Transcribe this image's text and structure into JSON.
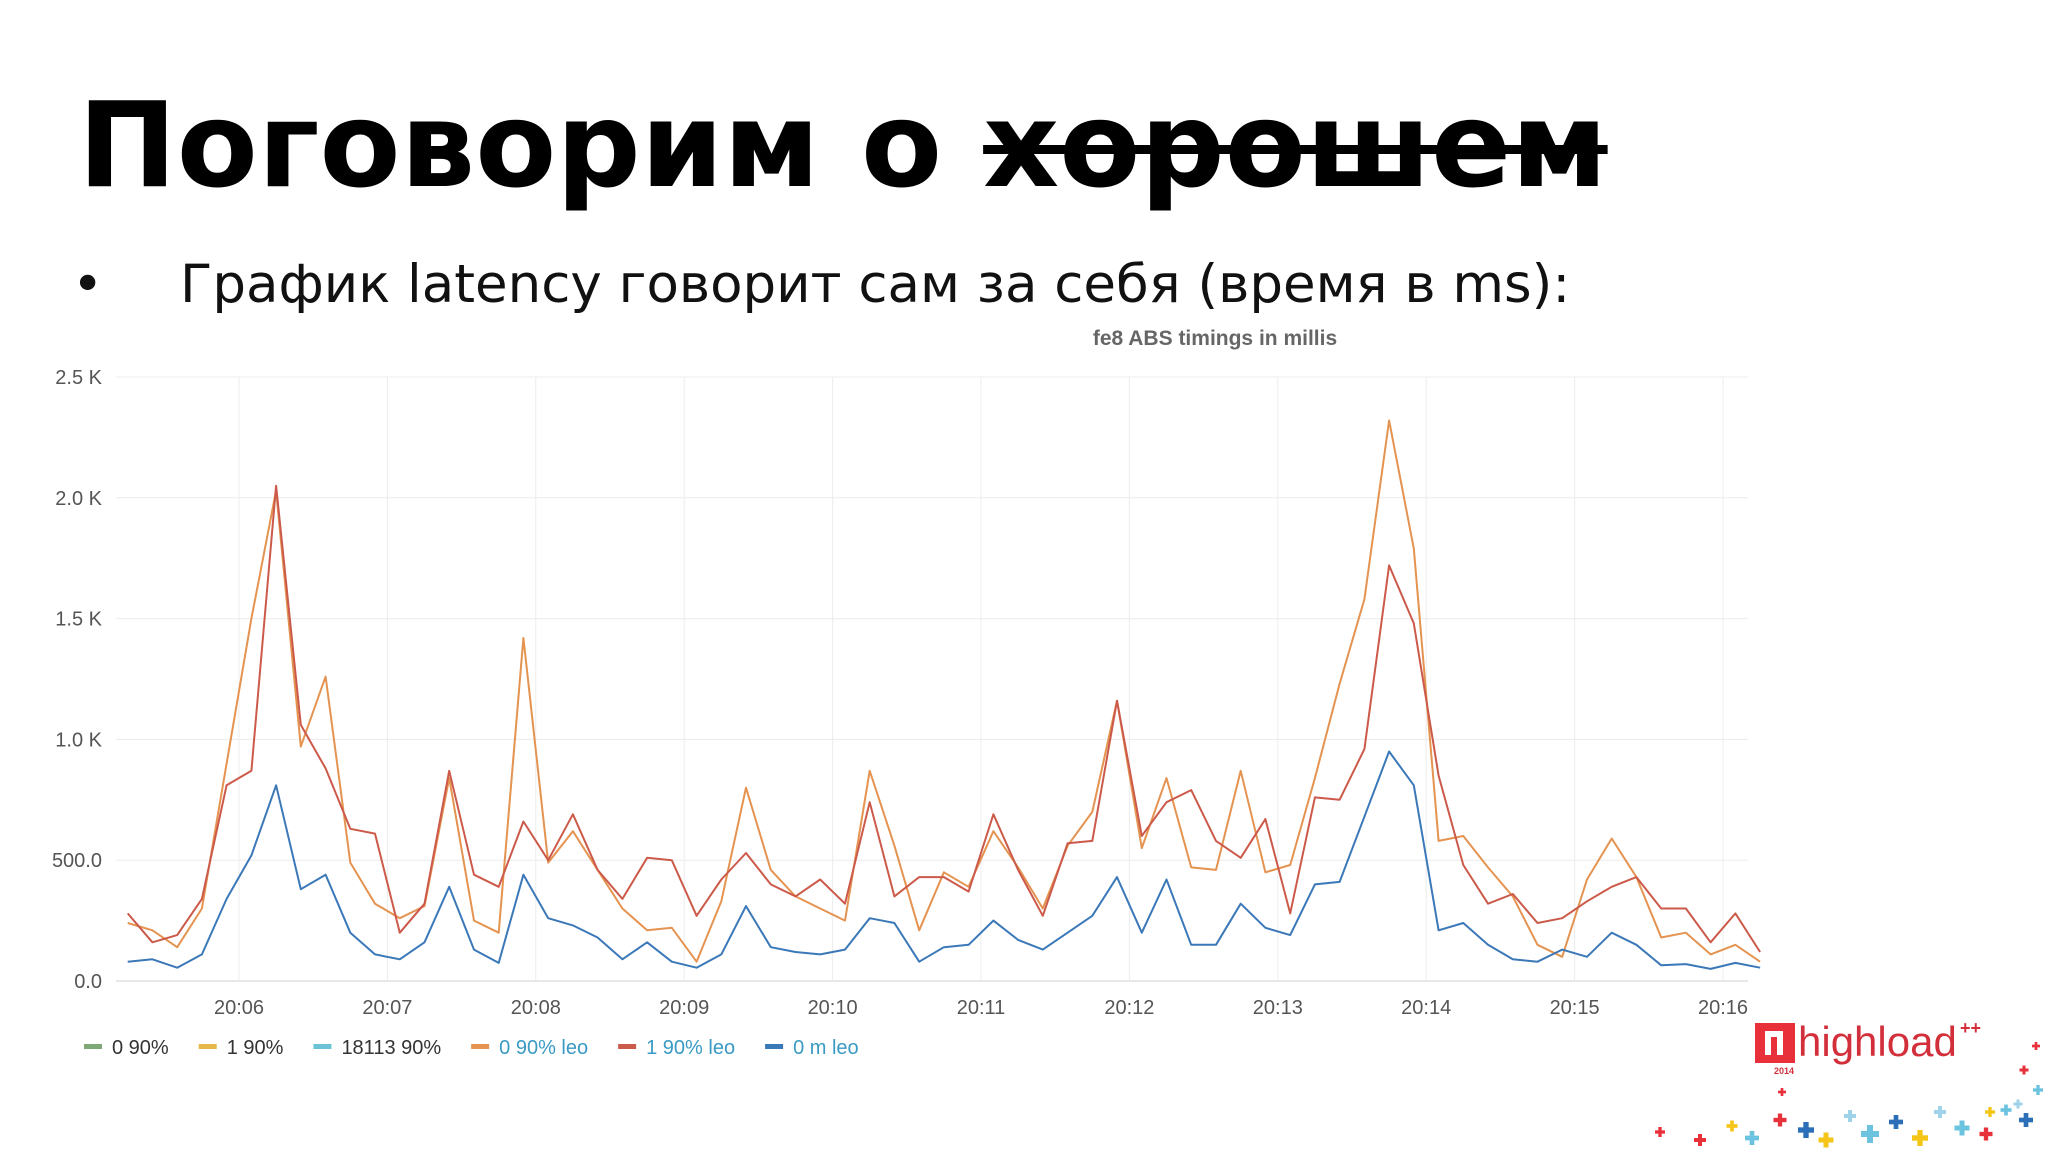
{
  "slide": {
    "title_plain": "Поговорим о ",
    "title_struck": "хорошем",
    "bullet_symbol": "•",
    "bullet_text": "График latency говорит сам за себя (время в ms):"
  },
  "logo": {
    "name": "highload",
    "superscript": "++",
    "year": "2014",
    "colors": [
      "#e8303a",
      "#f5c518",
      "#6cc3e0",
      "#2a6fb8"
    ]
  },
  "chart_data": {
    "type": "line",
    "title": "fe8 ABS timings in millis",
    "xlabel": "",
    "ylabel": "",
    "x_start": "20:05:15",
    "x_step_seconds": 10,
    "x_ticks": [
      "20:06",
      "20:07",
      "20:08",
      "20:09",
      "20:10",
      "20:11",
      "20:12",
      "20:13",
      "20:14",
      "20:15",
      "20:16"
    ],
    "ylim": [
      0,
      2500
    ],
    "y_ticks": [
      0,
      500,
      1000,
      1500,
      2000,
      2500
    ],
    "y_tick_labels": [
      "0.0",
      "500.0",
      "1.0 K",
      "1.5 K",
      "2.0 K",
      "2.5 K"
    ],
    "grid": true,
    "legend_position": "bottom-left",
    "series": [
      {
        "name": "0 90%",
        "color": "#7fa877",
        "values": []
      },
      {
        "name": "1 90%",
        "color": "#e6b84a",
        "values": []
      },
      {
        "name": "18113 90%",
        "color": "#6cc3d8",
        "values": []
      },
      {
        "name": "0 90% leo",
        "color": "#e49350",
        "values": [
          240,
          210,
          140,
          300,
          900,
          1500,
          2030,
          970,
          1260,
          490,
          320,
          260,
          310,
          840,
          250,
          200,
          1420,
          490,
          620,
          460,
          300,
          210,
          220,
          80,
          330,
          800,
          460,
          350,
          300,
          250,
          870,
          560,
          210,
          450,
          390,
          620,
          470,
          300,
          560,
          700,
          1160,
          550,
          840,
          470,
          460,
          870,
          450,
          480,
          840,
          1230,
          1580,
          2320,
          1790,
          580,
          600,
          470,
          350,
          150,
          100,
          420,
          590,
          430,
          180,
          200,
          110,
          150,
          80
        ]
      },
      {
        "name": "1 90% leo",
        "color": "#cc5a4a",
        "values": [
          280,
          160,
          190,
          340,
          810,
          870,
          2050,
          1060,
          880,
          630,
          610,
          200,
          320,
          870,
          440,
          390,
          660,
          500,
          690,
          460,
          340,
          510,
          500,
          270,
          420,
          530,
          400,
          350,
          420,
          320,
          740,
          350,
          430,
          430,
          370,
          690,
          460,
          270,
          570,
          580,
          1160,
          600,
          740,
          790,
          580,
          510,
          670,
          280,
          760,
          750,
          960,
          1720,
          1480,
          850,
          480,
          320,
          360,
          240,
          260,
          330,
          390,
          430,
          300,
          300,
          160,
          280,
          120
        ]
      },
      {
        "name": "0 m leo",
        "color": "#3b78b8",
        "values": [
          80,
          90,
          55,
          110,
          340,
          520,
          810,
          380,
          440,
          200,
          110,
          90,
          160,
          390,
          130,
          75,
          440,
          260,
          230,
          180,
          90,
          160,
          80,
          55,
          110,
          310,
          140,
          120,
          110,
          130,
          260,
          240,
          80,
          140,
          150,
          250,
          170,
          130,
          200,
          270,
          430,
          200,
          420,
          150,
          150,
          320,
          220,
          190,
          400,
          410,
          680,
          950,
          810,
          210,
          240,
          150,
          90,
          80,
          130,
          100,
          200,
          150,
          65,
          70,
          50,
          75,
          55
        ]
      }
    ]
  }
}
